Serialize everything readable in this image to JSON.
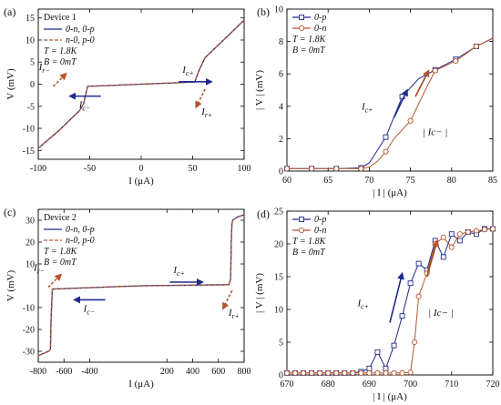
{
  "chart_data": [
    {
      "panel": "(a)",
      "type": "line",
      "xlabel": "I (μA)",
      "ylabel": "V (mV)",
      "xlim": [
        -100,
        100
      ],
      "ylim": [
        -17,
        17
      ],
      "xticks": [
        -100,
        -50,
        0,
        50,
        100
      ],
      "yticks": [
        -15,
        -10,
        -5,
        0,
        5,
        10,
        15
      ],
      "legend_title": "Device 1",
      "legend": [
        "0-n, 0-p",
        "n-0, p-0"
      ],
      "params": [
        "T = 1.8K",
        "B = 0mT"
      ],
      "annotations": [
        "Ic+",
        "Ic−",
        "Ir−",
        "Ir+"
      ],
      "series": [
        {
          "name": "0-n, 0-p",
          "color": "#1f2a8c",
          "dash": false,
          "x": [
            -100,
            -80,
            -60,
            -56,
            -52,
            0,
            52,
            56,
            60,
            62,
            80,
            100
          ],
          "y": [
            -14.5,
            -10.5,
            -6.0,
            -4.5,
            -0.5,
            0.0,
            0.5,
            3.0,
            5.0,
            6.0,
            10.0,
            14.5
          ]
        },
        {
          "name": "n-0, p-0",
          "color": "#b5562f",
          "dash": true,
          "x": [
            -100,
            -80,
            -60,
            -56,
            -52,
            0,
            52,
            56,
            60,
            62,
            80,
            100
          ],
          "y": [
            -14.5,
            -10.5,
            -6.0,
            -4.5,
            -0.5,
            0.0,
            0.5,
            3.0,
            5.0,
            6.0,
            10.0,
            14.5
          ]
        }
      ]
    },
    {
      "panel": "(b)",
      "type": "line",
      "xlabel": "| I | (μA)",
      "ylabel": "| V | (mV)",
      "xlim": [
        60,
        85
      ],
      "ylim": [
        0,
        10
      ],
      "xticks": [
        60,
        65,
        70,
        75,
        80,
        85
      ],
      "yticks": [
        0,
        2,
        4,
        6,
        8,
        10
      ],
      "legend": [
        "0-p",
        "0-n"
      ],
      "params": [
        "T = 1.8K",
        "B = 0mT"
      ],
      "annotations": [
        "Ic+",
        "| Ic− |"
      ],
      "series": [
        {
          "name": "0-p",
          "color": "#1f2a8c",
          "marker": "square",
          "x": [
            60,
            63,
            66,
            69,
            70,
            72,
            74,
            76,
            78,
            80.5,
            83,
            85
          ],
          "y": [
            0.15,
            0.15,
            0.15,
            0.2,
            0.5,
            2.1,
            4.6,
            5.7,
            6.25,
            6.9,
            7.7,
            8.2
          ],
          "marker_x": [
            60,
            63,
            66,
            69,
            72,
            74,
            78,
            80.5,
            83
          ],
          "marker_y": [
            0.15,
            0.15,
            0.15,
            0.2,
            2.1,
            4.6,
            6.25,
            6.9,
            7.7
          ]
        },
        {
          "name": "0-n",
          "color": "#b5562f",
          "marker": "circle",
          "x": [
            60,
            63,
            66,
            69,
            70,
            71,
            72,
            73,
            75,
            77,
            78,
            80.5,
            83,
            85
          ],
          "y": [
            0.15,
            0.15,
            0.15,
            0.15,
            0.25,
            0.6,
            1.2,
            2.0,
            3.1,
            5.2,
            6.2,
            6.8,
            7.7,
            8.2
          ],
          "marker_x": [
            60,
            63,
            66,
            69,
            72,
            75,
            78,
            80.5,
            83
          ],
          "marker_y": [
            0.15,
            0.15,
            0.15,
            0.15,
            1.2,
            3.1,
            6.2,
            6.8,
            7.7
          ]
        }
      ]
    },
    {
      "panel": "(c)",
      "type": "line",
      "xlabel": "I (μA)",
      "ylabel": "V (mV)",
      "xlim": [
        -800,
        800
      ],
      "ylim": [
        -35,
        35
      ],
      "xticks": [
        -800,
        -600,
        -400,
        200,
        400,
        600,
        800
      ],
      "yticks": [
        -30,
        -20,
        -10,
        10,
        20,
        30
      ],
      "legend_title": "Device 2",
      "legend": [
        "0-n, 0-p",
        "n-0, p-0"
      ],
      "params": [
        "T = 1.8K",
        "B = 0mT"
      ],
      "annotations": [
        "Ic+",
        "Ic−",
        "Ir−",
        "Ir+"
      ],
      "series": [
        {
          "name": "0-n, 0-p",
          "color": "#1f2a8c",
          "dash": false,
          "x": [
            -800,
            -720,
            -705,
            -700,
            -690,
            0,
            680,
            695,
            700,
            705,
            710,
            750,
            800
          ],
          "y": [
            -32,
            -30,
            -29,
            -15,
            -1.5,
            0.0,
            0.5,
            3,
            20,
            28,
            30,
            31.5,
            32.5
          ]
        },
        {
          "name": "n-0, p-0",
          "color": "#b5562f",
          "dash": true,
          "x": [
            -800,
            -720,
            -705,
            -700,
            -690,
            0,
            680,
            695,
            700,
            705,
            710,
            750,
            800
          ],
          "y": [
            -32,
            -30,
            -29,
            -15,
            -1.5,
            0.0,
            0.5,
            3,
            20,
            28,
            30,
            31.5,
            32.5
          ]
        }
      ]
    },
    {
      "panel": "(d)",
      "type": "line",
      "xlabel": "| I | (μA)",
      "ylabel": "| V | (mV)",
      "xlim": [
        670,
        720
      ],
      "ylim": [
        0,
        25
      ],
      "xticks": [
        670,
        680,
        690,
        700,
        710,
        720
      ],
      "yticks": [
        0,
        5,
        10,
        15,
        20,
        25
      ],
      "legend": [
        "0-p",
        "0-n"
      ],
      "params": [
        "T = 1.8K",
        "B = 0mT"
      ],
      "annotations": [
        "Ic+",
        "| Ic− |"
      ],
      "series": [
        {
          "name": "0-p",
          "color": "#1f2a8c",
          "marker": "square",
          "x": [
            670,
            672,
            674,
            676,
            678,
            680,
            682,
            684,
            686,
            688,
            690,
            692,
            694,
            696,
            698,
            700,
            702,
            704,
            706,
            708,
            710,
            712,
            714,
            716,
            718,
            720
          ],
          "y": [
            0.3,
            0.3,
            0.3,
            0.3,
            0.3,
            0.3,
            0.3,
            0.3,
            0.3,
            0.5,
            1.0,
            3.5,
            1.0,
            4.5,
            9.0,
            14.0,
            17.0,
            16.0,
            20.5,
            18.0,
            21.5,
            20.5,
            21.8,
            21.5,
            22.3,
            22.3
          ]
        },
        {
          "name": "0-n",
          "color": "#b5562f",
          "marker": "circle",
          "x": [
            670,
            672,
            674,
            676,
            678,
            680,
            682,
            684,
            686,
            688,
            690,
            692,
            694,
            696,
            698,
            700,
            701,
            702,
            704,
            706,
            708,
            710,
            712,
            714,
            716,
            718,
            720
          ],
          "y": [
            0.3,
            0.3,
            0.3,
            0.3,
            0.3,
            0.3,
            0.3,
            0.3,
            0.3,
            0.3,
            0.3,
            0.3,
            0.3,
            0.3,
            0.3,
            0.4,
            5.0,
            12.0,
            15.5,
            20.0,
            21.0,
            19.5,
            21.5,
            21.8,
            22.0,
            22.2,
            22.3
          ]
        }
      ]
    }
  ]
}
